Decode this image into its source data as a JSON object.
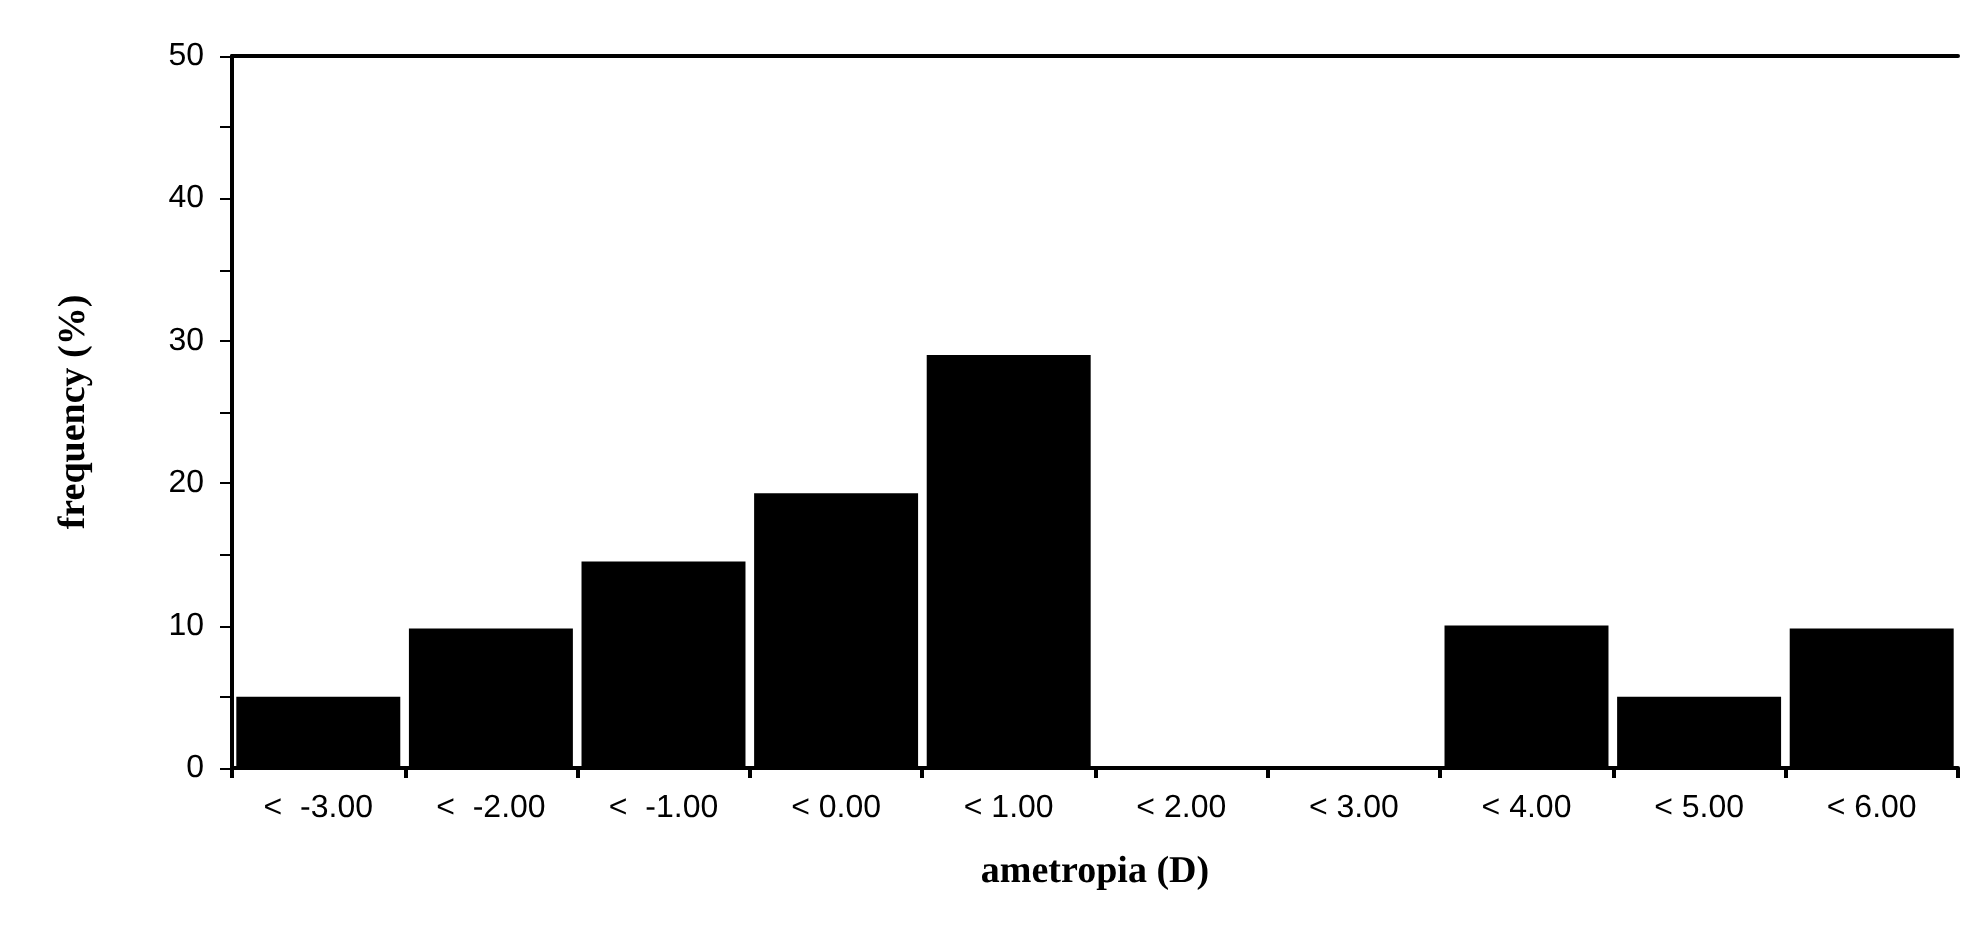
{
  "chart_data": {
    "type": "bar",
    "xlabel": "ametropia (D)",
    "ylabel": "frequency (%)",
    "categories": [
      "<  -3.00",
      "<  -2.00",
      "<  -1.00",
      "< 0.00",
      "< 1.00",
      "< 2.00",
      "< 3.00",
      "< 4.00",
      "< 5.00",
      "< 6.00"
    ],
    "values": [
      5,
      9.8,
      14.5,
      19.3,
      29,
      0,
      0,
      10,
      5,
      9.8
    ],
    "color": "#000000",
    "ylim": [
      0,
      50
    ],
    "yticks": [
      0,
      {
        "value": 5,
        "label": null
      },
      10,
      {
        "value": 15,
        "label": null
      },
      20,
      {
        "value": 25,
        "label": null
      },
      30,
      {
        "value": 35,
        "label": null
      },
      40,
      {
        "value": 45,
        "label": null
      },
      50
    ],
    "grid": false
  }
}
